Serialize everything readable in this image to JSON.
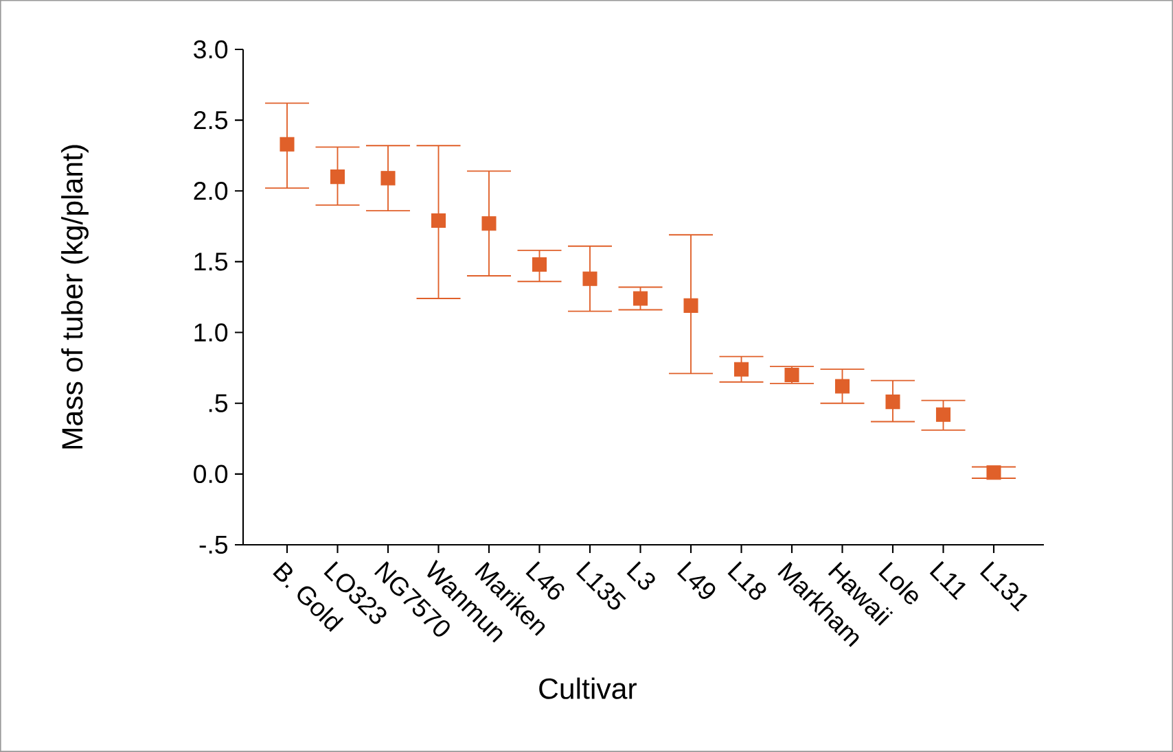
{
  "chart_data": {
    "type": "scatter",
    "xlabel": "Cultivar",
    "ylabel": "Mass of tuber (kg/plant)",
    "categories": [
      "B. Gold",
      "LO323",
      "NG7570",
      "Wanmun",
      "Mariken",
      "L46",
      "L135",
      "L3",
      "L49",
      "L18",
      "Markham",
      "Hawaii",
      "Lole",
      "L11",
      "L131"
    ],
    "values": [
      2.33,
      2.1,
      2.09,
      1.79,
      1.77,
      1.48,
      1.38,
      1.24,
      1.19,
      0.74,
      0.7,
      0.62,
      0.51,
      0.42,
      0.01
    ],
    "errors": [
      [
        2.02,
        2.62
      ],
      [
        1.9,
        2.31
      ],
      [
        1.86,
        2.32
      ],
      [
        1.24,
        2.32
      ],
      [
        1.4,
        2.14
      ],
      [
        1.36,
        1.58
      ],
      [
        1.15,
        1.61
      ],
      [
        1.16,
        1.32
      ],
      [
        0.71,
        1.69
      ],
      [
        0.65,
        0.83
      ],
      [
        0.64,
        0.76
      ],
      [
        0.5,
        0.74
      ],
      [
        0.37,
        0.66
      ],
      [
        0.31,
        0.52
      ],
      [
        -0.03,
        0.05
      ]
    ],
    "color": "#e0602a",
    "marker": "square",
    "grid": false,
    "ylim": [
      -0.5,
      3.0
    ],
    "yticks": [
      {
        "value": -0.5,
        "label": "-.5"
      },
      {
        "value": 0.0,
        "label": "0.0"
      },
      {
        "value": 0.5,
        "label": ".5"
      },
      {
        "value": 1.0,
        "label": "1.0"
      },
      {
        "value": 1.5,
        "label": "1.5"
      },
      {
        "value": 2.0,
        "label": "2.0"
      },
      {
        "value": 2.5,
        "label": "2.5"
      },
      {
        "value": 3.0,
        "label": "3.0"
      }
    ]
  }
}
